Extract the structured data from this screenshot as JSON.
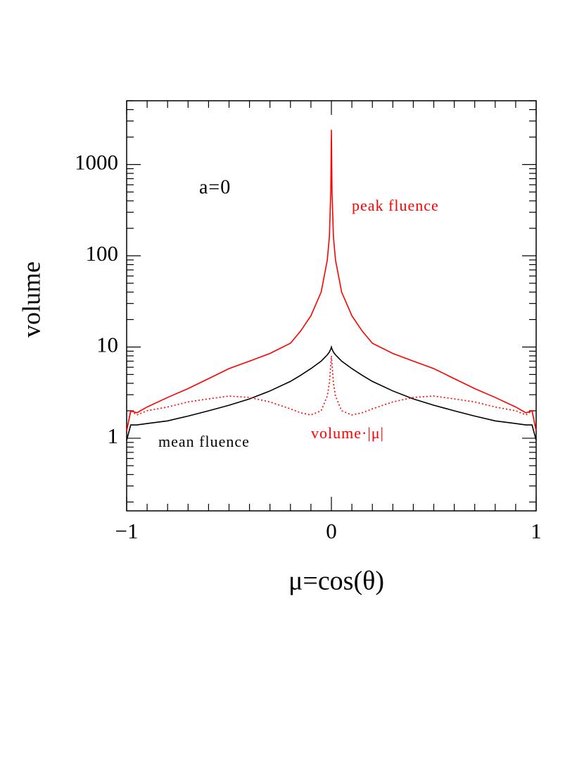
{
  "chart_data": {
    "type": "line",
    "xlabel": "μ=cos(θ)",
    "ylabel": "volume",
    "annotations": [
      "a=0",
      "peak fluence",
      "mean fluence",
      "volume·|μ|"
    ],
    "log_y": true,
    "xlim": [
      -1,
      1
    ],
    "ylim": [
      0.16,
      5000
    ],
    "xticks": [
      {
        "value": -1,
        "label": "−1"
      },
      0,
      1
    ],
    "yticks": [
      1,
      10,
      100,
      1000
    ],
    "xminorticks": [
      -0.9,
      -0.8,
      -0.7,
      -0.6,
      -0.5,
      -0.4,
      -0.3,
      -0.2,
      -0.1,
      0.1,
      0.2,
      0.3,
      0.4,
      0.5,
      0.6,
      0.7,
      0.8,
      0.9
    ],
    "yminorticks": [
      0.2,
      0.3,
      0.4,
      0.5,
      0.6,
      0.7,
      0.8,
      0.9,
      2,
      3,
      4,
      5,
      6,
      7,
      8,
      9,
      20,
      30,
      40,
      50,
      60,
      70,
      80,
      90,
      200,
      300,
      400,
      500,
      600,
      700,
      800,
      900,
      2000,
      3000,
      4000,
      5000
    ],
    "x": [
      -1,
      -0.98,
      -0.95,
      -0.9,
      -0.8,
      -0.7,
      -0.6,
      -0.5,
      -0.4,
      -0.3,
      -0.2,
      -0.15,
      -0.1,
      -0.05,
      -0.02,
      -0.01,
      -0.003,
      0,
      0.003,
      0.01,
      0.02,
      0.05,
      0.1,
      0.15,
      0.2,
      0.3,
      0.4,
      0.5,
      0.6,
      0.7,
      0.8,
      0.9,
      0.95,
      0.98,
      1
    ],
    "series": [
      {
        "color": "#ff0000",
        "style": "solid",
        "values": [
          1.2,
          2.0,
          1.9,
          2.2,
          2.8,
          3.5,
          4.5,
          5.8,
          7.0,
          8.5,
          11,
          15,
          22,
          40,
          90,
          160,
          500,
          2400,
          500,
          160,
          90,
          40,
          22,
          15,
          11,
          8.5,
          7.0,
          5.8,
          4.5,
          3.5,
          2.8,
          2.2,
          1.9,
          2.0,
          1.2
        ]
      },
      {
        "color": "#000000",
        "style": "solid",
        "values": [
          0.95,
          1.4,
          1.4,
          1.45,
          1.55,
          1.75,
          2.0,
          2.3,
          2.7,
          3.3,
          4.2,
          4.9,
          5.8,
          7.0,
          8.2,
          8.8,
          9.5,
          10,
          9.5,
          8.8,
          8.2,
          7.0,
          5.8,
          4.9,
          4.2,
          3.3,
          2.7,
          2.3,
          2.0,
          1.75,
          1.55,
          1.45,
          1.4,
          1.4,
          0.95
        ]
      },
      {
        "color": "#ff0000",
        "style": "dotted",
        "values": [
          1.2,
          2.0,
          1.8,
          2.0,
          2.2,
          2.5,
          2.7,
          2.9,
          2.8,
          2.5,
          2.1,
          1.9,
          1.8,
          2.0,
          2.9,
          4.0,
          6.5,
          8,
          6.5,
          4.0,
          2.9,
          2.0,
          1.8,
          1.9,
          2.1,
          2.5,
          2.8,
          2.9,
          2.7,
          2.5,
          2.2,
          2.0,
          1.8,
          2.0,
          1.2
        ]
      }
    ]
  }
}
